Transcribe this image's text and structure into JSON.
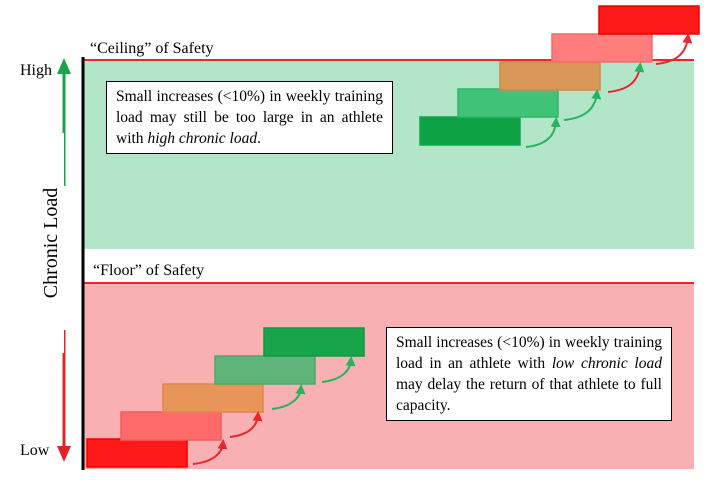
{
  "axis": {
    "label": "Chronic Load",
    "high_label": "High",
    "low_label": "Low"
  },
  "ceiling": {
    "label": "“Ceiling” of Safety",
    "note": {
      "text": "Small increases (<10%) in weekly training load may still be too large in an athlete with ",
      "emphasis": "high chronic load",
      "suffix": "."
    }
  },
  "floor": {
    "label": "“Floor” of Safety",
    "note": {
      "text": "Small increases (<10%) in weekly training load in an athlete with ",
      "emphasis": "low chronic load",
      "suffix": " may delay the return of that athlete to full capacity."
    }
  },
  "colors": {
    "safe_zone": "#b3e6c9",
    "danger_zone": "#f8b0b3",
    "boundary_line": "#e8262c",
    "high_arrow": "#1aa34a",
    "low_arrow": "#e0242a",
    "step_arrow_green": "#27b25c",
    "step_arrow_red": "#e8262c",
    "upper_steps": [
      "#0ea446",
      "#40c379",
      "#d99858",
      "#ff7d7d",
      "#ff1a1a"
    ],
    "lower_steps": [
      "#ff1a1a",
      "#ff6b6b",
      "#e8955a",
      "#5fb47a",
      "#18a44a"
    ]
  }
}
